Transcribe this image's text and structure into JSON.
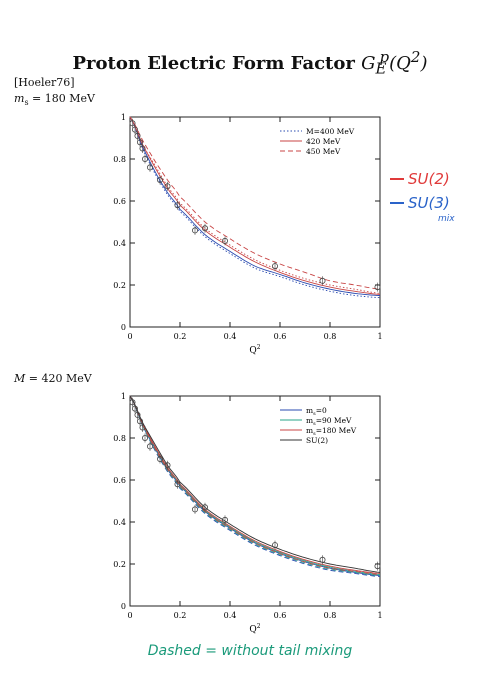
{
  "header": {
    "title_text": "Proton Electric Form Factor",
    "title_symbol": "G",
    "title_sup": "p",
    "title_sub": "E",
    "title_arg": "(Q",
    "title_arg_sup": "2",
    "title_arg_close": ")"
  },
  "top_panel": {
    "reference": "[Hoeler76]",
    "param_symbol": "m",
    "param_sub": "s",
    "param_value": " = 180 MeV"
  },
  "bottom_panel": {
    "param_symbol": "M",
    "param_value": " = 420 MeV"
  },
  "handwritten": {
    "su2_label": "SU(2)",
    "su3_label": "SU(3)",
    "su3_sub": "mix",
    "footer_note": "Dashed = without tail mixing",
    "colors": {
      "red": "#e03a3a",
      "blue": "#2a63c9",
      "green": "#1a9a7a"
    }
  },
  "chart_data": [
    {
      "type": "line",
      "xlabel": "Q",
      "xlabel_sup": "2",
      "xlim": [
        0,
        1
      ],
      "ylim": [
        0,
        1
      ],
      "xticks": [
        "0",
        "0.2",
        "0.4",
        "0.6",
        "0.8",
        "1"
      ],
      "yticks": [
        "0",
        "0.2",
        "0.4",
        "0.6",
        "0.8",
        "1"
      ],
      "grid": false,
      "legend_position": "top-right",
      "legend": [
        "M=400 MeV",
        "420 MeV",
        "450 MeV"
      ],
      "x": [
        0,
        0.05,
        0.1,
        0.15,
        0.2,
        0.3,
        0.4,
        0.5,
        0.6,
        0.7,
        0.8,
        0.9,
        1.0
      ],
      "series": [
        {
          "name": "M=400 MeV",
          "style": "dotted",
          "color": "#2a4bb0",
          "values": [
            1.0,
            0.85,
            0.73,
            0.63,
            0.55,
            0.43,
            0.35,
            0.28,
            0.24,
            0.2,
            0.17,
            0.15,
            0.14
          ]
        },
        {
          "name": "M=400 MeV",
          "style": "solid",
          "color": "#2a4bb0",
          "values": [
            1.0,
            0.86,
            0.74,
            0.64,
            0.56,
            0.44,
            0.36,
            0.29,
            0.25,
            0.21,
            0.18,
            0.16,
            0.15
          ]
        },
        {
          "name": "420 MeV",
          "style": "solid",
          "color": "#c84545",
          "values": [
            1.0,
            0.87,
            0.76,
            0.66,
            0.58,
            0.46,
            0.38,
            0.31,
            0.26,
            0.22,
            0.19,
            0.17,
            0.155
          ]
        },
        {
          "name": "420 MeV",
          "style": "dotted",
          "color": "#c84545",
          "values": [
            1.0,
            0.87,
            0.77,
            0.67,
            0.59,
            0.47,
            0.39,
            0.32,
            0.27,
            0.23,
            0.2,
            0.18,
            0.16
          ]
        },
        {
          "name": "450 MeV",
          "style": "dashed",
          "color": "#c84545",
          "values": [
            1.0,
            0.89,
            0.79,
            0.7,
            0.62,
            0.5,
            0.42,
            0.35,
            0.3,
            0.26,
            0.22,
            0.2,
            0.18
          ]
        }
      ],
      "points": {
        "x": [
          0.01,
          0.02,
          0.03,
          0.04,
          0.05,
          0.06,
          0.08,
          0.12,
          0.15,
          0.19,
          0.26,
          0.3,
          0.38,
          0.58,
          0.77,
          0.99
        ],
        "y": [
          0.97,
          0.94,
          0.91,
          0.88,
          0.85,
          0.8,
          0.76,
          0.7,
          0.67,
          0.58,
          0.46,
          0.47,
          0.41,
          0.29,
          0.22,
          0.19
        ]
      }
    },
    {
      "type": "line",
      "xlabel": "Q",
      "xlabel_sup": "2",
      "xlim": [
        0,
        1
      ],
      "ylim": [
        0,
        1
      ],
      "xticks": [
        "0",
        "0.2",
        "0.4",
        "0.6",
        "0.8",
        "1"
      ],
      "yticks": [
        "0",
        "0.2",
        "0.4",
        "0.6",
        "0.8",
        "1"
      ],
      "grid": false,
      "legend_position": "top-right",
      "legend": [
        "m_s=0",
        "m_s=90 MeV",
        "m_s=180 MeV",
        "SU(2)"
      ],
      "x": [
        0,
        0.05,
        0.1,
        0.15,
        0.2,
        0.3,
        0.4,
        0.5,
        0.6,
        0.7,
        0.8,
        0.9,
        1.0
      ],
      "series": [
        {
          "name": "m_s=0",
          "style": "solid",
          "color": "#2a4bb0",
          "values": [
            1.0,
            0.86,
            0.75,
            0.65,
            0.57,
            0.45,
            0.37,
            0.3,
            0.25,
            0.21,
            0.18,
            0.16,
            0.145
          ]
        },
        {
          "name": "m_s=0",
          "style": "dashed",
          "color": "#2a4bb0",
          "values": [
            1.0,
            0.86,
            0.74,
            0.64,
            0.56,
            0.44,
            0.36,
            0.29,
            0.24,
            0.2,
            0.17,
            0.155,
            0.14
          ]
        },
        {
          "name": "m_s=90 MeV",
          "style": "solid",
          "color": "#2aa68a",
          "values": [
            1.0,
            0.865,
            0.755,
            0.655,
            0.575,
            0.455,
            0.375,
            0.305,
            0.255,
            0.215,
            0.185,
            0.165,
            0.15
          ]
        },
        {
          "name": "m_s=90 MeV",
          "style": "dashed",
          "color": "#2aa68a",
          "values": [
            1.0,
            0.86,
            0.745,
            0.645,
            0.565,
            0.445,
            0.365,
            0.295,
            0.245,
            0.205,
            0.175,
            0.16,
            0.145
          ]
        },
        {
          "name": "m_s=180 MeV",
          "style": "solid",
          "color": "#c84545",
          "values": [
            1.0,
            0.87,
            0.76,
            0.66,
            0.58,
            0.46,
            0.38,
            0.31,
            0.26,
            0.22,
            0.19,
            0.17,
            0.155
          ]
        },
        {
          "name": "m_s=180 MeV",
          "style": "dashed",
          "color": "#c84545",
          "values": [
            1.0,
            0.865,
            0.75,
            0.65,
            0.57,
            0.45,
            0.37,
            0.3,
            0.25,
            0.21,
            0.18,
            0.165,
            0.15
          ]
        },
        {
          "name": "SU(2)",
          "style": "solid",
          "color": "#333333",
          "values": [
            1.0,
            0.875,
            0.77,
            0.67,
            0.59,
            0.47,
            0.39,
            0.32,
            0.27,
            0.23,
            0.2,
            0.18,
            0.16
          ]
        }
      ],
      "points": {
        "x": [
          0.01,
          0.02,
          0.03,
          0.04,
          0.05,
          0.06,
          0.08,
          0.12,
          0.15,
          0.19,
          0.26,
          0.3,
          0.38,
          0.58,
          0.77,
          0.99
        ],
        "y": [
          0.97,
          0.94,
          0.91,
          0.88,
          0.85,
          0.8,
          0.76,
          0.7,
          0.67,
          0.58,
          0.46,
          0.47,
          0.41,
          0.29,
          0.22,
          0.19
        ]
      }
    }
  ]
}
